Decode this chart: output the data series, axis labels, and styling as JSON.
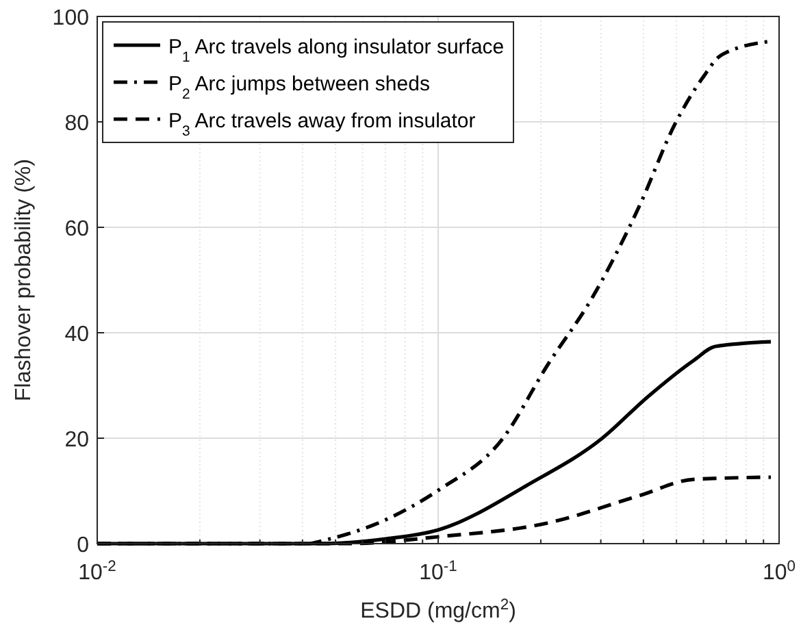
{
  "chart_data": {
    "type": "line",
    "xlabel": "ESDD (mg/cm$^{2}$)",
    "ylabel": "Flashover probability (%)",
    "log": "x",
    "xlim": [
      0.01,
      1
    ],
    "ylim": [
      0,
      100
    ],
    "xticks": [
      {
        "value": 0.01,
        "label": "10$^{-2}$"
      },
      {
        "value": 0.1,
        "label": "10$^{-1}$"
      },
      {
        "value": 1,
        "label": "10$^{0}$"
      }
    ],
    "yticks": [
      0,
      20,
      40,
      60,
      80,
      100
    ],
    "grid": true,
    "legend": "top left",
    "series": [
      {
        "name": "P$_{1}$ Arc travels along insulator surface",
        "color": "#000000",
        "line_style": "solid",
        "x": [
          0.01,
          0.045,
          0.07,
          0.1,
          0.186,
          0.303,
          0.411,
          0.563,
          0.65,
          0.946
        ],
        "values": [
          0,
          0,
          0.9,
          2.6,
          11.4,
          20,
          27.8,
          34.8,
          37.4,
          38.3
        ]
      },
      {
        "name": "P$_{2}$ Arc jumps between sheds",
        "color": "#000000",
        "line_style": "dashdot",
        "x": [
          0.01,
          0.042,
          0.0448,
          0.07,
          0.1,
          0.155,
          0.209,
          0.284,
          0.389,
          0.496,
          0.596,
          0.678,
          0.946
        ],
        "values": [
          0,
          0,
          0.4,
          4.5,
          10.1,
          20,
          33.8,
          46.8,
          64,
          79.7,
          88.3,
          92.7,
          95.3
        ]
      },
      {
        "name": "P$_{3}$ Arc travels away from insulator",
        "color": "#000000",
        "line_style": "dashed",
        "x": [
          0.01,
          0.055,
          0.1,
          0.209,
          0.389,
          0.563,
          0.946
        ],
        "values": [
          0,
          0,
          1.3,
          3.9,
          9.1,
          12.2,
          12.6
        ]
      }
    ]
  }
}
